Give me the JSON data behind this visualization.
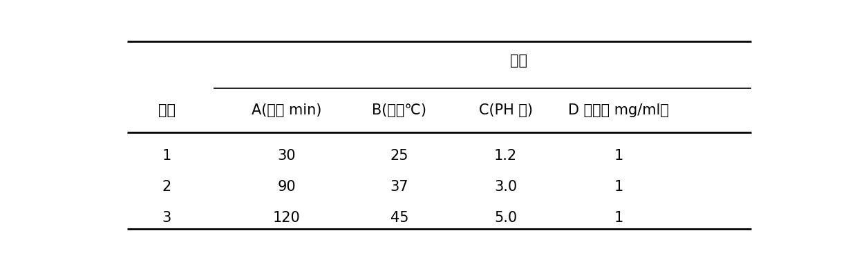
{
  "title_group": "因素",
  "row_header": "水平",
  "col_headers": [
    "A(时间 min)",
    "B(温度℃)",
    "C(PH 値)",
    "D （浓度 mg/ml）"
  ],
  "rows": [
    [
      "1",
      "30",
      "25",
      "1.2",
      "1"
    ],
    [
      "2",
      "90",
      "37",
      "3.0",
      "1"
    ],
    [
      "3",
      "120",
      "45",
      "5.0",
      "1"
    ]
  ],
  "bg_color": "#ffffff",
  "text_color": "#000000",
  "font_size": 15,
  "line_lw_thick": 2.0,
  "line_lw_thin": 1.2
}
